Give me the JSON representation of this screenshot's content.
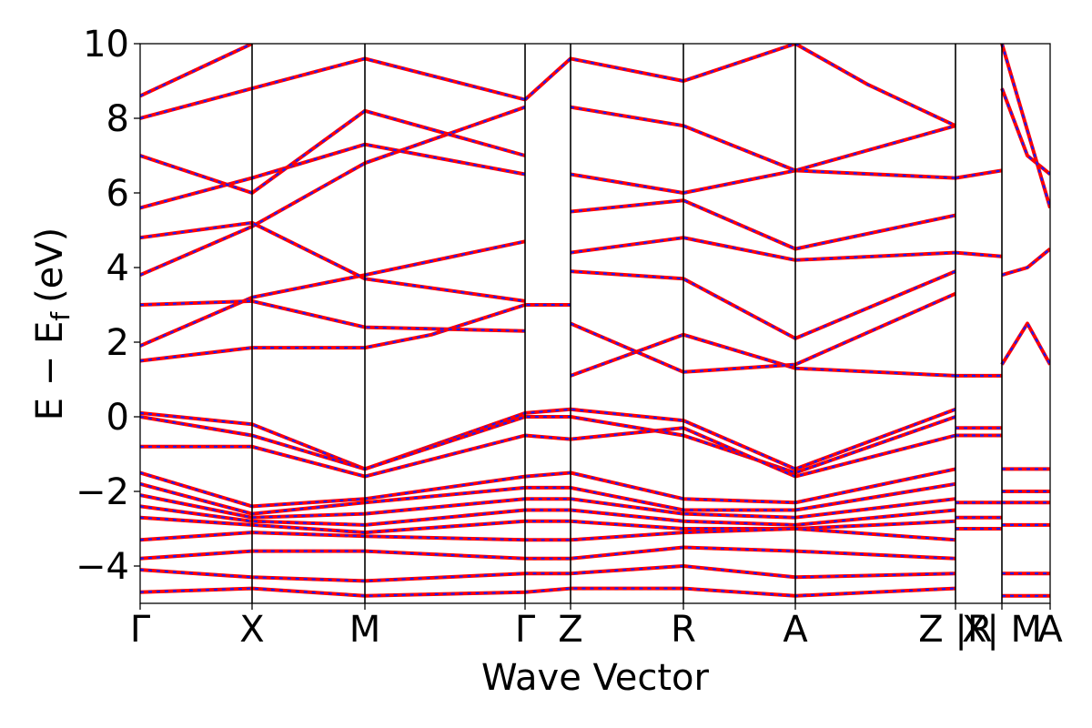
{
  "chart_data": {
    "type": "line",
    "title": "",
    "xlabel": "Wave Vector",
    "ylabel": "E − E",
    "ylabel_subscript": "f",
    "ylabel_unit": "(eV)",
    "ylim": [
      -5,
      10
    ],
    "yticks": [
      {
        "value": -4,
        "label": "−4"
      },
      {
        "value": -2,
        "label": "−2"
      },
      {
        "value": 0,
        "label": "0"
      },
      {
        "value": 2,
        "label": "2"
      },
      {
        "value": 4,
        "label": "4"
      },
      {
        "value": 6,
        "label": "6"
      },
      {
        "value": 8,
        "label": "8"
      },
      {
        "value": 10,
        "label": "10"
      }
    ],
    "xlim": [
      0,
      1
    ],
    "kpoints": [
      {
        "label": "Γ",
        "x": 0.0
      },
      {
        "label": "X",
        "x": 0.123
      },
      {
        "label": "M",
        "x": 0.247
      },
      {
        "label": "Γ",
        "x": 0.423
      },
      {
        "label": "Z",
        "x": 0.473
      },
      {
        "label": "R",
        "x": 0.597
      },
      {
        "label": "A",
        "x": 0.72
      },
      {
        "label": "Z |R",
        "x": 0.896
      },
      {
        "label": "X| M",
        "x": 0.947
      },
      {
        "label": "A",
        "x": 1.0
      }
    ],
    "grid": false,
    "series_colors": {
      "primary": "#ff0000",
      "overlay": "#1a1aff"
    },
    "series": [
      {
        "points": [
          [
            0,
            1.5
          ],
          [
            0.123,
            1.85
          ],
          [
            0.247,
            1.85
          ],
          [
            0.32,
            2.2
          ],
          [
            0.423,
            3.0
          ],
          [
            0.473,
            3.0
          ]
        ]
      },
      {
        "points": [
          [
            0,
            1.9
          ],
          [
            0.123,
            3.2
          ],
          [
            0.247,
            3.8
          ],
          [
            0.423,
            4.7
          ]
        ]
      },
      {
        "points": [
          [
            0,
            3.0
          ],
          [
            0.123,
            3.1
          ],
          [
            0.247,
            2.4
          ],
          [
            0.423,
            2.3
          ]
        ]
      },
      {
        "points": [
          [
            0,
            3.8
          ],
          [
            0.123,
            5.1
          ],
          [
            0.247,
            6.8
          ],
          [
            0.423,
            8.3
          ]
        ]
      },
      {
        "points": [
          [
            0,
            4.8
          ],
          [
            0.123,
            5.2
          ],
          [
            0.247,
            3.7
          ],
          [
            0.423,
            3.1
          ]
        ]
      },
      {
        "points": [
          [
            0,
            5.6
          ],
          [
            0.123,
            6.4
          ],
          [
            0.247,
            7.3
          ],
          [
            0.423,
            6.5
          ]
        ]
      },
      {
        "points": [
          [
            0,
            7.0
          ],
          [
            0.123,
            6.0
          ],
          [
            0.247,
            8.2
          ],
          [
            0.423,
            7.0
          ]
        ]
      },
      {
        "points": [
          [
            0,
            8.0
          ],
          [
            0.123,
            8.8
          ],
          [
            0.247,
            9.6
          ],
          [
            0.423,
            8.5
          ]
        ]
      },
      {
        "points": [
          [
            0,
            8.6
          ],
          [
            0.123,
            10.0
          ]
        ]
      },
      {
        "points": [
          [
            0.423,
            8.5
          ],
          [
            0.473,
            9.6
          ],
          [
            0.597,
            9.0
          ],
          [
            0.72,
            10.0
          ]
        ]
      },
      {
        "points": [
          [
            0.473,
            1.1
          ],
          [
            0.597,
            2.2
          ],
          [
            0.72,
            1.3
          ],
          [
            0.896,
            1.1
          ]
        ]
      },
      {
        "points": [
          [
            0.473,
            2.5
          ],
          [
            0.597,
            1.2
          ],
          [
            0.72,
            1.4
          ],
          [
            0.896,
            3.3
          ]
        ]
      },
      {
        "points": [
          [
            0.473,
            3.9
          ],
          [
            0.597,
            3.7
          ],
          [
            0.72,
            2.1
          ],
          [
            0.896,
            3.9
          ]
        ]
      },
      {
        "points": [
          [
            0.473,
            4.4
          ],
          [
            0.597,
            4.8
          ],
          [
            0.72,
            4.2
          ],
          [
            0.896,
            4.4
          ]
        ]
      },
      {
        "points": [
          [
            0.473,
            5.5
          ],
          [
            0.597,
            5.8
          ],
          [
            0.72,
            4.5
          ],
          [
            0.896,
            5.4
          ]
        ]
      },
      {
        "points": [
          [
            0.473,
            6.5
          ],
          [
            0.597,
            6.0
          ],
          [
            0.72,
            6.6
          ],
          [
            0.896,
            6.4
          ]
        ]
      },
      {
        "points": [
          [
            0.473,
            8.3
          ],
          [
            0.597,
            7.8
          ],
          [
            0.72,
            6.6
          ],
          [
            0.896,
            7.8
          ]
        ]
      },
      {
        "points": [
          [
            0.72,
            10.0
          ],
          [
            0.8,
            8.9
          ],
          [
            0.896,
            7.8
          ]
        ]
      },
      {
        "points": [
          [
            0.896,
            1.1
          ],
          [
            0.947,
            1.1
          ]
        ]
      },
      {
        "points": [
          [
            0.896,
            6.4
          ],
          [
            0.947,
            6.6
          ]
        ]
      },
      {
        "points": [
          [
            0.896,
            4.4
          ],
          [
            0.947,
            4.3
          ]
        ]
      },
      {
        "points": [
          [
            0.947,
            1.4
          ],
          [
            0.975,
            2.5
          ],
          [
            1.0,
            1.4
          ]
        ]
      },
      {
        "points": [
          [
            0.947,
            3.8
          ],
          [
            0.975,
            4.0
          ],
          [
            1.0,
            4.5
          ]
        ]
      },
      {
        "points": [
          [
            0.947,
            8.8
          ],
          [
            0.975,
            7.0
          ],
          [
            1.0,
            6.5
          ]
        ]
      },
      {
        "points": [
          [
            0.947,
            10.0
          ],
          [
            1.0,
            5.6
          ]
        ]
      },
      {
        "points": [
          [
            0,
            0.1
          ],
          [
            0.123,
            -0.2
          ],
          [
            0.247,
            -1.4
          ],
          [
            0.423,
            0.1
          ],
          [
            0.473,
            0.2
          ],
          [
            0.597,
            -0.1
          ],
          [
            0.72,
            -1.4
          ],
          [
            0.896,
            0.2
          ]
        ]
      },
      {
        "points": [
          [
            0,
            0.0
          ],
          [
            0.123,
            -0.5
          ],
          [
            0.247,
            -1.4
          ],
          [
            0.423,
            0.0
          ],
          [
            0.473,
            0.0
          ],
          [
            0.597,
            -0.5
          ],
          [
            0.72,
            -1.5
          ],
          [
            0.896,
            0.0
          ]
        ]
      },
      {
        "points": [
          [
            0,
            -0.8
          ],
          [
            0.123,
            -0.8
          ],
          [
            0.247,
            -1.6
          ],
          [
            0.423,
            -0.5
          ],
          [
            0.473,
            -0.6
          ],
          [
            0.597,
            -0.3
          ],
          [
            0.72,
            -1.6
          ],
          [
            0.896,
            -0.5
          ]
        ]
      },
      {
        "points": [
          [
            0,
            -1.5
          ],
          [
            0.123,
            -2.4
          ],
          [
            0.247,
            -2.2
          ],
          [
            0.423,
            -1.6
          ],
          [
            0.473,
            -1.5
          ],
          [
            0.597,
            -2.2
          ],
          [
            0.72,
            -2.3
          ],
          [
            0.896,
            -1.4
          ]
        ]
      },
      {
        "points": [
          [
            0,
            -1.8
          ],
          [
            0.123,
            -2.6
          ],
          [
            0.247,
            -2.3
          ],
          [
            0.423,
            -1.9
          ],
          [
            0.473,
            -1.9
          ],
          [
            0.597,
            -2.5
          ],
          [
            0.72,
            -2.5
          ],
          [
            0.896,
            -1.8
          ]
        ]
      },
      {
        "points": [
          [
            0,
            -2.1
          ],
          [
            0.123,
            -2.7
          ],
          [
            0.247,
            -2.6
          ],
          [
            0.423,
            -2.2
          ],
          [
            0.473,
            -2.2
          ],
          [
            0.597,
            -2.6
          ],
          [
            0.72,
            -2.7
          ],
          [
            0.896,
            -2.2
          ]
        ]
      },
      {
        "points": [
          [
            0,
            -2.4
          ],
          [
            0.123,
            -2.8
          ],
          [
            0.247,
            -2.9
          ],
          [
            0.423,
            -2.5
          ],
          [
            0.473,
            -2.5
          ],
          [
            0.597,
            -2.8
          ],
          [
            0.72,
            -2.9
          ],
          [
            0.896,
            -2.5
          ]
        ]
      },
      {
        "points": [
          [
            0,
            -2.7
          ],
          [
            0.123,
            -2.9
          ],
          [
            0.247,
            -3.1
          ],
          [
            0.423,
            -2.8
          ],
          [
            0.473,
            -2.8
          ],
          [
            0.597,
            -3.0
          ],
          [
            0.72,
            -3.0
          ],
          [
            0.896,
            -2.8
          ]
        ]
      },
      {
        "points": [
          [
            0,
            -3.3
          ],
          [
            0.123,
            -3.1
          ],
          [
            0.247,
            -3.2
          ],
          [
            0.423,
            -3.3
          ],
          [
            0.473,
            -3.3
          ],
          [
            0.597,
            -3.1
          ],
          [
            0.72,
            -3.0
          ],
          [
            0.896,
            -3.3
          ]
        ]
      },
      {
        "points": [
          [
            0,
            -3.8
          ],
          [
            0.123,
            -3.6
          ],
          [
            0.247,
            -3.6
          ],
          [
            0.423,
            -3.8
          ],
          [
            0.473,
            -3.8
          ],
          [
            0.597,
            -3.5
          ],
          [
            0.72,
            -3.6
          ],
          [
            0.896,
            -3.8
          ]
        ]
      },
      {
        "points": [
          [
            0,
            -4.1
          ],
          [
            0.123,
            -4.3
          ],
          [
            0.247,
            -4.4
          ],
          [
            0.423,
            -4.2
          ],
          [
            0.473,
            -4.2
          ],
          [
            0.597,
            -4.0
          ],
          [
            0.72,
            -4.3
          ],
          [
            0.896,
            -4.2
          ]
        ]
      },
      {
        "points": [
          [
            0,
            -4.7
          ],
          [
            0.123,
            -4.6
          ],
          [
            0.247,
            -4.8
          ],
          [
            0.423,
            -4.7
          ],
          [
            0.473,
            -4.6
          ],
          [
            0.597,
            -4.6
          ],
          [
            0.72,
            -4.8
          ],
          [
            0.896,
            -4.6
          ]
        ]
      },
      {
        "points": [
          [
            0.896,
            -0.3
          ],
          [
            0.947,
            -0.3
          ]
        ]
      },
      {
        "points": [
          [
            0.896,
            -0.5
          ],
          [
            0.947,
            -0.5
          ]
        ]
      },
      {
        "points": [
          [
            0.896,
            -2.3
          ],
          [
            0.947,
            -2.3
          ]
        ]
      },
      {
        "points": [
          [
            0.896,
            -2.7
          ],
          [
            0.947,
            -2.7
          ]
        ]
      },
      {
        "points": [
          [
            0.896,
            -3.0
          ],
          [
            0.947,
            -3.0
          ]
        ]
      },
      {
        "points": [
          [
            0.947,
            -1.4
          ],
          [
            1.0,
            -1.4
          ]
        ]
      },
      {
        "points": [
          [
            0.947,
            -2.0
          ],
          [
            1.0,
            -2.0
          ]
        ]
      },
      {
        "points": [
          [
            0.947,
            -2.3
          ],
          [
            1.0,
            -2.3
          ]
        ]
      },
      {
        "points": [
          [
            0.947,
            -2.9
          ],
          [
            1.0,
            -2.9
          ]
        ]
      },
      {
        "points": [
          [
            0.947,
            -4.2
          ],
          [
            1.0,
            -4.2
          ]
        ]
      },
      {
        "points": [
          [
            0.947,
            -4.8
          ],
          [
            1.0,
            -4.8
          ]
        ]
      }
    ]
  }
}
